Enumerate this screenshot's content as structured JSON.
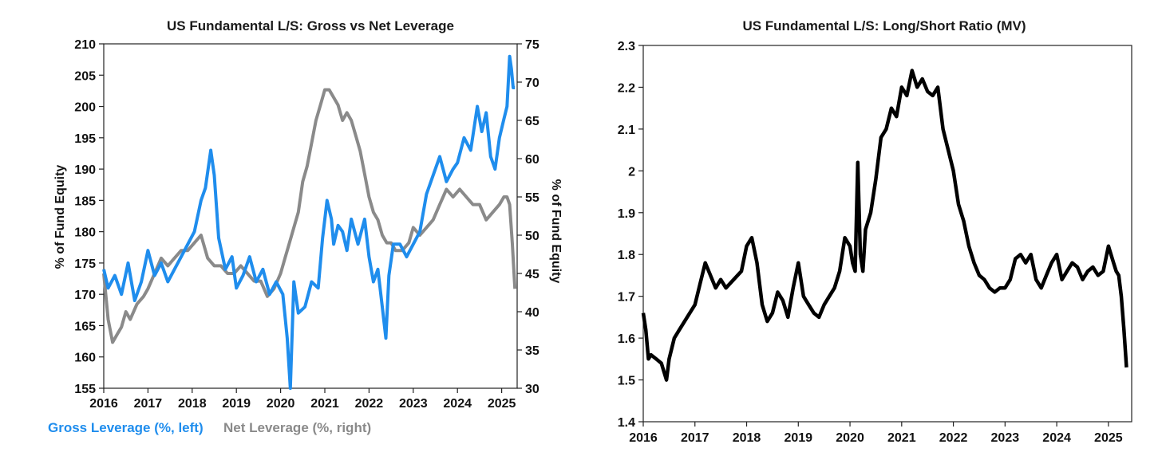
{
  "colors": {
    "gross": "#1f8ded",
    "net": "#8a8a8a",
    "ratio": "#000000",
    "axis": "#222222"
  },
  "chart_data": [
    {
      "type": "line",
      "title": "US Fundamental L/S: Gross vs Net Leverage",
      "ylabel_left": "% of Fund Equity",
      "ylabel_right": "% of Fund Equity",
      "xlabel": "",
      "x_tick_labels": [
        "2016",
        "2017",
        "2018",
        "2019",
        "2020",
        "2021",
        "2022",
        "2023",
        "2024",
        "2025"
      ],
      "xlim": [
        2016.0,
        2025.35
      ],
      "ylim_left": [
        155,
        210
      ],
      "ylim_right": [
        30,
        75
      ],
      "y_ticks_left": [
        155,
        160,
        165,
        170,
        175,
        180,
        185,
        190,
        195,
        200,
        205,
        210
      ],
      "y_ticks_right": [
        30,
        35,
        40,
        45,
        50,
        55,
        60,
        65,
        70,
        75
      ],
      "grid": false,
      "legend_placement": "bottom-left",
      "series": [
        {
          "name": "Gross Leverage (%, left)",
          "axis": "left",
          "x": [
            2016.0,
            2016.1,
            2016.25,
            2016.4,
            2016.55,
            2016.7,
            2016.85,
            2017.0,
            2017.15,
            2017.3,
            2017.45,
            2017.6,
            2017.75,
            2017.9,
            2018.05,
            2018.2,
            2018.3,
            2018.42,
            2018.5,
            2018.6,
            2018.75,
            2018.9,
            2019.0,
            2019.15,
            2019.3,
            2019.45,
            2019.6,
            2019.75,
            2019.9,
            2020.05,
            2020.15,
            2020.22,
            2020.3,
            2020.4,
            2020.55,
            2020.7,
            2020.85,
            2020.95,
            2021.05,
            2021.15,
            2021.2,
            2021.3,
            2021.4,
            2021.5,
            2021.6,
            2021.75,
            2021.9,
            2022.0,
            2022.1,
            2022.2,
            2022.3,
            2022.38,
            2022.45,
            2022.55,
            2022.7,
            2022.85,
            2023.0,
            2023.15,
            2023.3,
            2023.45,
            2023.6,
            2023.75,
            2023.9,
            2024.0,
            2024.15,
            2024.3,
            2024.45,
            2024.55,
            2024.65,
            2024.75,
            2024.85,
            2024.95,
            2025.05,
            2025.12,
            2025.18,
            2025.22,
            2025.26,
            2025.3
          ],
          "y": [
            174,
            171,
            173,
            170,
            175,
            169,
            172,
            177,
            173,
            175,
            172,
            174,
            176,
            178,
            180,
            185,
            187,
            193,
            189,
            179,
            174,
            176,
            171,
            173,
            176,
            172,
            174,
            170,
            172,
            170,
            163,
            155,
            172,
            167,
            168,
            172,
            171,
            179,
            185,
            182,
            178,
            181,
            180,
            177,
            182,
            178,
            182,
            176,
            172,
            174,
            168,
            163,
            173,
            178,
            178,
            176,
            178,
            180,
            186,
            189,
            192,
            188,
            190,
            191,
            195,
            193,
            200,
            196,
            199,
            192,
            190,
            195,
            198,
            200,
            208,
            206,
            203,
            203
          ]
        },
        {
          "name": "Net Leverage (%, right)",
          "axis": "right",
          "x": [
            2016.0,
            2016.1,
            2016.2,
            2016.3,
            2016.4,
            2016.5,
            2016.6,
            2016.75,
            2016.9,
            2017.0,
            2017.15,
            2017.3,
            2017.45,
            2017.6,
            2017.75,
            2017.9,
            2018.05,
            2018.2,
            2018.35,
            2018.5,
            2018.65,
            2018.8,
            2018.95,
            2019.1,
            2019.25,
            2019.4,
            2019.55,
            2019.7,
            2019.85,
            2020.0,
            2020.1,
            2020.2,
            2020.3,
            2020.4,
            2020.5,
            2020.6,
            2020.7,
            2020.8,
            2020.9,
            2021.0,
            2021.1,
            2021.2,
            2021.3,
            2021.4,
            2021.5,
            2021.6,
            2021.7,
            2021.8,
            2021.9,
            2022.0,
            2022.1,
            2022.2,
            2022.3,
            2022.4,
            2022.5,
            2022.6,
            2022.75,
            2022.9,
            2023.0,
            2023.15,
            2023.3,
            2023.45,
            2023.6,
            2023.75,
            2023.9,
            2024.05,
            2024.2,
            2024.35,
            2024.5,
            2024.65,
            2024.8,
            2024.95,
            2025.05,
            2025.12,
            2025.18,
            2025.24,
            2025.3
          ],
          "y": [
            45,
            39,
            36,
            37,
            38,
            40,
            39,
            41,
            42,
            43,
            45,
            47,
            46,
            47,
            48,
            48,
            49,
            50,
            47,
            46,
            46,
            45,
            45,
            46,
            45,
            44,
            44,
            42,
            43,
            45,
            47,
            49,
            51,
            53,
            57,
            59,
            62,
            65,
            67,
            69,
            69,
            68,
            67,
            65,
            66,
            65,
            63,
            61,
            58,
            55,
            53,
            52,
            50,
            49,
            49,
            48,
            48,
            49,
            51,
            50,
            51,
            52,
            54,
            56,
            55,
            56,
            55,
            54,
            54,
            52,
            53,
            54,
            55,
            55,
            54,
            49,
            43
          ]
        }
      ]
    },
    {
      "type": "line",
      "title": "US Fundamental L/S: Long/Short Ratio (MV)",
      "xlabel": "",
      "ylabel": "",
      "x_tick_labels": [
        "2016",
        "2017",
        "2018",
        "2019",
        "2020",
        "2021",
        "2022",
        "2023",
        "2024",
        "2025"
      ],
      "xlim": [
        2016.0,
        2025.45
      ],
      "ylim": [
        1.4,
        2.3
      ],
      "y_tick_labels": [
        "1.4",
        "1.5",
        "1.6",
        "1.7",
        "1.8",
        "1.9",
        "2",
        "2.1",
        "2.2",
        "2.3"
      ],
      "grid": false,
      "series": [
        {
          "x": [
            2016.0,
            2016.05,
            2016.1,
            2016.15,
            2016.25,
            2016.35,
            2016.45,
            2016.5,
            2016.6,
            2016.7,
            2016.85,
            2017.0,
            2017.1,
            2017.2,
            2017.3,
            2017.4,
            2017.5,
            2017.6,
            2017.75,
            2017.9,
            2018.0,
            2018.1,
            2018.2,
            2018.3,
            2018.4,
            2018.5,
            2018.6,
            2018.7,
            2018.8,
            2018.9,
            2019.0,
            2019.1,
            2019.2,
            2019.3,
            2019.4,
            2019.5,
            2019.6,
            2019.7,
            2019.8,
            2019.9,
            2020.0,
            2020.05,
            2020.1,
            2020.15,
            2020.2,
            2020.25,
            2020.3,
            2020.4,
            2020.5,
            2020.6,
            2020.7,
            2020.8,
            2020.9,
            2021.0,
            2021.1,
            2021.2,
            2021.3,
            2021.4,
            2021.5,
            2021.6,
            2021.7,
            2021.8,
            2021.9,
            2022.0,
            2022.1,
            2022.2,
            2022.3,
            2022.4,
            2022.5,
            2022.6,
            2022.7,
            2022.8,
            2022.9,
            2023.0,
            2023.1,
            2023.2,
            2023.3,
            2023.4,
            2023.5,
            2023.6,
            2023.7,
            2023.8,
            2023.9,
            2024.0,
            2024.1,
            2024.2,
            2024.3,
            2024.4,
            2024.5,
            2024.6,
            2024.7,
            2024.8,
            2024.9,
            2025.0,
            2025.1,
            2025.15,
            2025.2,
            2025.25,
            2025.3,
            2025.35
          ],
          "y": [
            1.66,
            1.62,
            1.55,
            1.56,
            1.55,
            1.54,
            1.5,
            1.55,
            1.6,
            1.62,
            1.65,
            1.68,
            1.73,
            1.78,
            1.75,
            1.72,
            1.74,
            1.72,
            1.74,
            1.76,
            1.82,
            1.84,
            1.78,
            1.68,
            1.64,
            1.66,
            1.71,
            1.69,
            1.65,
            1.72,
            1.78,
            1.7,
            1.68,
            1.66,
            1.65,
            1.68,
            1.7,
            1.72,
            1.76,
            1.84,
            1.82,
            1.78,
            1.76,
            2.02,
            1.8,
            1.76,
            1.86,
            1.9,
            1.98,
            2.08,
            2.1,
            2.15,
            2.13,
            2.2,
            2.18,
            2.24,
            2.2,
            2.22,
            2.19,
            2.18,
            2.2,
            2.1,
            2.05,
            2.0,
            1.92,
            1.88,
            1.82,
            1.78,
            1.75,
            1.74,
            1.72,
            1.71,
            1.72,
            1.72,
            1.74,
            1.79,
            1.8,
            1.78,
            1.8,
            1.74,
            1.72,
            1.75,
            1.78,
            1.8,
            1.74,
            1.76,
            1.78,
            1.77,
            1.74,
            1.76,
            1.77,
            1.75,
            1.76,
            1.82,
            1.78,
            1.76,
            1.75,
            1.7,
            1.62,
            1.53
          ]
        }
      ]
    }
  ]
}
